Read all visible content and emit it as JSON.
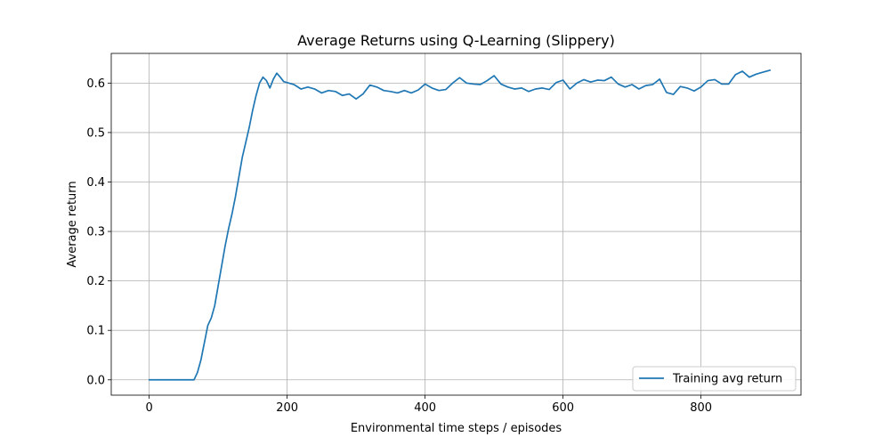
{
  "chart_data": {
    "type": "line",
    "title": "Average Returns using Q-Learning (Slippery)",
    "xlabel": "Environmental time steps / episodes",
    "ylabel": "Average return",
    "xlim": [
      -55,
      945
    ],
    "ylim": [
      -0.031,
      0.66
    ],
    "x_ticks": [
      0,
      200,
      400,
      600,
      800
    ],
    "y_ticks": [
      0.0,
      0.1,
      0.2,
      0.3,
      0.4,
      0.5,
      0.6
    ],
    "x_tick_labels": [
      "0",
      "200",
      "400",
      "600",
      "800"
    ],
    "y_tick_labels": [
      "0.0",
      "0.1",
      "0.2",
      "0.3",
      "0.4",
      "0.5",
      "0.6"
    ],
    "grid": true,
    "legend": {
      "position": "bottom-right",
      "entries": [
        "Training avg return"
      ]
    },
    "series": [
      {
        "name": "Training avg return",
        "color": "#1f77b4",
        "x": [
          0,
          10,
          20,
          30,
          40,
          50,
          60,
          65,
          70,
          75,
          80,
          85,
          90,
          95,
          100,
          105,
          110,
          115,
          120,
          125,
          130,
          135,
          140,
          145,
          150,
          155,
          160,
          165,
          170,
          175,
          180,
          185,
          190,
          195,
          200,
          210,
          220,
          230,
          240,
          250,
          260,
          270,
          280,
          290,
          300,
          310,
          320,
          330,
          340,
          350,
          360,
          370,
          380,
          390,
          400,
          410,
          420,
          430,
          440,
          450,
          460,
          470,
          480,
          490,
          500,
          510,
          520,
          530,
          540,
          550,
          560,
          570,
          580,
          590,
          600,
          610,
          620,
          630,
          640,
          650,
          660,
          670,
          680,
          690,
          700,
          710,
          720,
          730,
          740,
          750,
          760,
          770,
          780,
          790,
          800,
          810,
          820,
          830,
          840,
          850,
          860,
          870,
          880,
          890,
          900
        ],
        "y": [
          0.0,
          0.0,
          0.0,
          0.0,
          0.0,
          0.0,
          0.0,
          0.0,
          0.015,
          0.04,
          0.075,
          0.11,
          0.125,
          0.15,
          0.19,
          0.23,
          0.27,
          0.305,
          0.335,
          0.37,
          0.41,
          0.45,
          0.48,
          0.51,
          0.545,
          0.575,
          0.6,
          0.612,
          0.605,
          0.59,
          0.608,
          0.62,
          0.612,
          0.603,
          0.601,
          0.597,
          0.588,
          0.592,
          0.588,
          0.58,
          0.585,
          0.583,
          0.575,
          0.578,
          0.568,
          0.578,
          0.596,
          0.592,
          0.585,
          0.583,
          0.58,
          0.585,
          0.58,
          0.586,
          0.598,
          0.59,
          0.585,
          0.587,
          0.6,
          0.611,
          0.6,
          0.598,
          0.597,
          0.605,
          0.615,
          0.598,
          0.592,
          0.588,
          0.59,
          0.583,
          0.588,
          0.59,
          0.587,
          0.601,
          0.606,
          0.588,
          0.6,
          0.607,
          0.602,
          0.606,
          0.605,
          0.612,
          0.598,
          0.592,
          0.597,
          0.588,
          0.595,
          0.597,
          0.608,
          0.581,
          0.577,
          0.593,
          0.59,
          0.584,
          0.592,
          0.605,
          0.607,
          0.598,
          0.598,
          0.617,
          0.624,
          0.612,
          0.618,
          0.622,
          0.626
        ]
      }
    ]
  }
}
